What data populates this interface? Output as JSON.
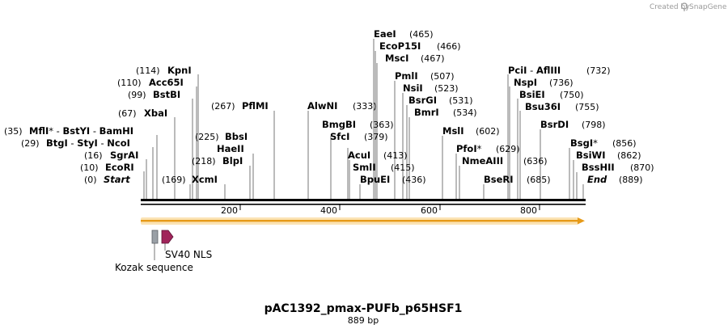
{
  "credit": {
    "prefix": "Created by",
    "brand": "SnapGene"
  },
  "map": {
    "length": 889,
    "axis_ticks": [
      "200",
      "400",
      "600",
      "800"
    ]
  },
  "sites": [
    {
      "name": "KpnI",
      "pos": "(114)"
    },
    {
      "name": "Acc65I",
      "pos": "(110)"
    },
    {
      "name": "BstBI",
      "pos": "(99)"
    },
    {
      "name": "XbaI",
      "pos": "(67)"
    },
    {
      "name": "MflI",
      "star": "*",
      "sep1": " - ",
      "name2": "BstYI",
      "sep2": " - ",
      "name3": "BamHI",
      "pos": "(35)"
    },
    {
      "name": "BtgI",
      "sep1": " - ",
      "name2": "StyI",
      "sep2": " - ",
      "name3": "NcoI",
      "pos": "(29)"
    },
    {
      "name": "SgrAI",
      "pos": "(16)"
    },
    {
      "name": "EcoRI",
      "pos": "(10)"
    },
    {
      "name": "Start",
      "pos": "(0)"
    },
    {
      "name": "XcmI",
      "pos": "(169)"
    },
    {
      "name": "BlpI",
      "pos": "(218)"
    },
    {
      "name": "HaeII",
      "pos": ""
    },
    {
      "name": "BbsI",
      "pos": "(225)"
    },
    {
      "name": "PflMI",
      "pos": "(267)"
    },
    {
      "name": "AlwNI",
      "pos": "(333)"
    },
    {
      "name": "BmgBI",
      "pos": "(363)"
    },
    {
      "name": "SfcI",
      "pos": "(379)"
    },
    {
      "name": "AcuI",
      "pos": "(413)"
    },
    {
      "name": "SmlI",
      "pos": "(415)"
    },
    {
      "name": "BpuEI",
      "pos": "(436)"
    },
    {
      "name": "EaeI",
      "pos": "(465)"
    },
    {
      "name": "EcoP15I",
      "pos": "(466)"
    },
    {
      "name": "MscI",
      "pos": "(467)"
    },
    {
      "name": "PmlI",
      "pos": "(507)"
    },
    {
      "name": "NsiI",
      "pos": "(523)"
    },
    {
      "name": "BsrGI",
      "pos": "(531)"
    },
    {
      "name": "BmrI",
      "pos": "(534)"
    },
    {
      "name": "MslI",
      "pos": "(602)"
    },
    {
      "name": "PfoI",
      "star": "*",
      "pos": "(629)"
    },
    {
      "name": "NmeAIII",
      "pos": "(636)"
    },
    {
      "name": "BseRI",
      "pos": "(685)"
    },
    {
      "name": "PciI",
      "sep1": " - ",
      "name2": "AflIII",
      "pos": "(732)"
    },
    {
      "name": "NspI",
      "pos": "(736)"
    },
    {
      "name": "BsiEI",
      "pos": "(750)"
    },
    {
      "name": "Bsu36I",
      "pos": "(755)"
    },
    {
      "name": "BsrDI",
      "pos": "(798)"
    },
    {
      "name": "BsgI",
      "star": "*",
      "pos": "(856)"
    },
    {
      "name": "BsiWI",
      "pos": "(862)"
    },
    {
      "name": "BssHII",
      "pos": "(870)"
    },
    {
      "name": "End",
      "pos": "(889)"
    }
  ],
  "features": {
    "sv40": "SV40 NLS",
    "kozak": "Kozak sequence"
  },
  "footer": {
    "name": "pAC1392_pmax-PUFb_p65HSF1",
    "size": "889 bp"
  }
}
